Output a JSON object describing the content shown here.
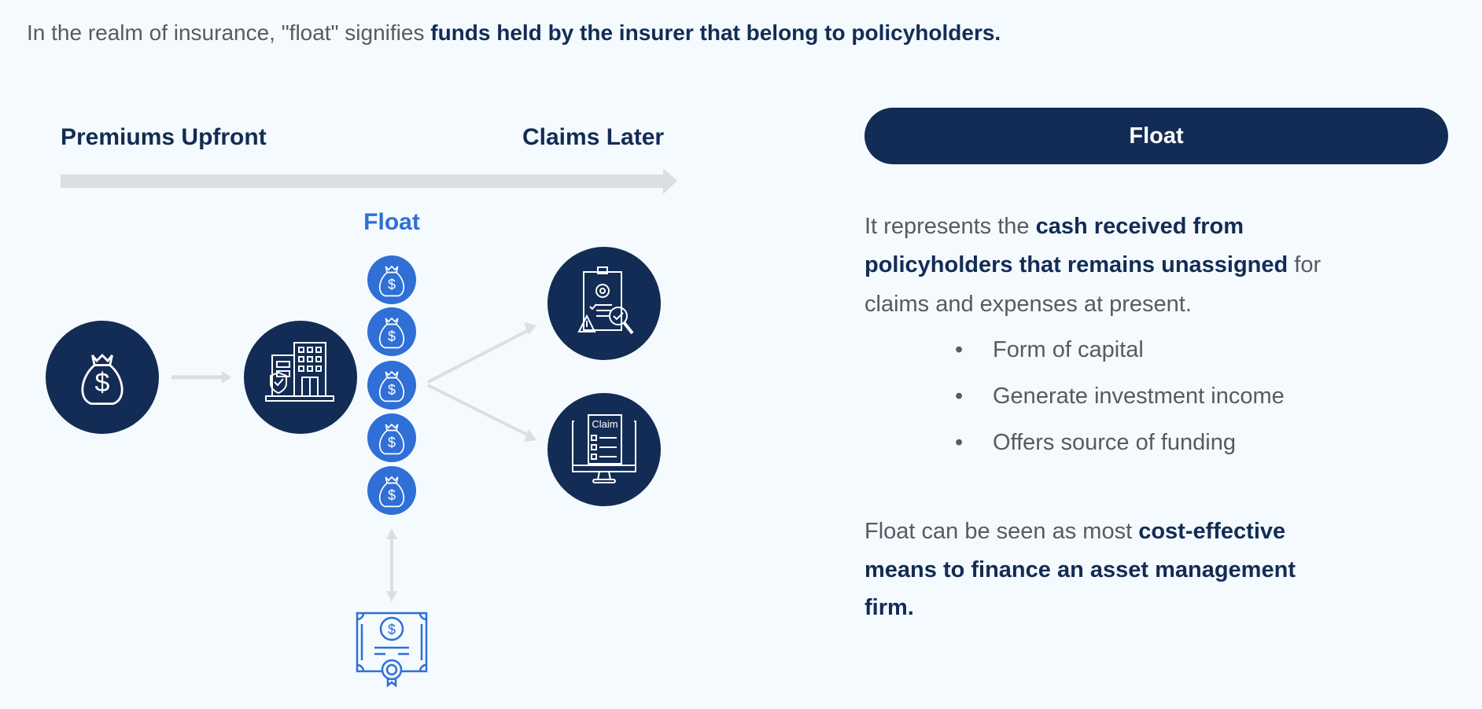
{
  "intro": {
    "plain": "In the realm of insurance, \"float\" signifies ",
    "bold": "funds held by the insurer that belong to policyholders."
  },
  "diagram": {
    "left_label": "Premiums Upfront",
    "right_label": "Claims Later",
    "float_label": "Float",
    "claim_icon_text": "Claim",
    "icons": [
      "money-bag-icon",
      "insurance-building-icon",
      "coin-bag-icon",
      "claims-review-icon",
      "claim-form-monitor-icon",
      "certificate-icon"
    ]
  },
  "panel": {
    "title": "Float",
    "para1": [
      {
        "plain": "It represents the ",
        "bold": "cash received from",
        "tail": ""
      },
      {
        "plain": "",
        "bold": "policyholders that remains unassigned",
        "tail": " for"
      },
      {
        "plain": "claims and expenses at present.",
        "bold": "",
        "tail": ""
      }
    ],
    "bullets": [
      "Form of capital",
      "Generate investment income",
      "Offers source of funding"
    ],
    "para2": [
      {
        "plain": "Float can be seen as most ",
        "bold": "cost-effective"
      },
      {
        "plain": "",
        "bold": "means to finance an asset management"
      },
      {
        "plain": "",
        "bold": "firm."
      }
    ]
  },
  "colors": {
    "navy": "#132c55",
    "blue": "#2f6fd6",
    "arrow_gray": "#dcdee2",
    "background": "#f4fafd",
    "text_gray": "#555b61"
  }
}
